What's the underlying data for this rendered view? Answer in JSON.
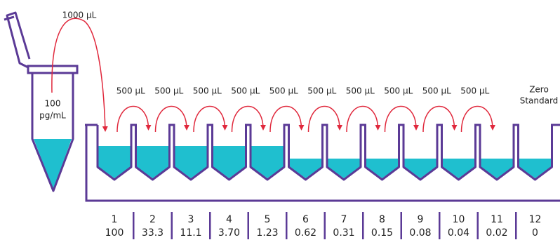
{
  "source_tube": {
    "volume": "1000 µL",
    "concentration": [
      "100",
      "pg/mL"
    ]
  },
  "transfers": [
    "500 µL",
    "500 µL",
    "500 µL",
    "500 µL",
    "500 µL",
    "500 µL",
    "500 µL",
    "500 µL",
    "500 µL",
    "500 µL"
  ],
  "zero_label": [
    "Zero",
    "Standard"
  ],
  "wells": [
    {
      "number": "1",
      "concentration": "100"
    },
    {
      "number": "2",
      "concentration": "33.3"
    },
    {
      "number": "3",
      "concentration": "11.1"
    },
    {
      "number": "4",
      "concentration": "3.70"
    },
    {
      "number": "5",
      "concentration": "1.23"
    },
    {
      "number": "6",
      "concentration": "0.62"
    },
    {
      "number": "7",
      "concentration": "0.31"
    },
    {
      "number": "8",
      "concentration": "0.15"
    },
    {
      "number": "9",
      "concentration": "0.08"
    },
    {
      "number": "10",
      "concentration": "0.04"
    },
    {
      "number": "11",
      "concentration": "0.02"
    },
    {
      "number": "12",
      "concentration": "0"
    }
  ]
}
